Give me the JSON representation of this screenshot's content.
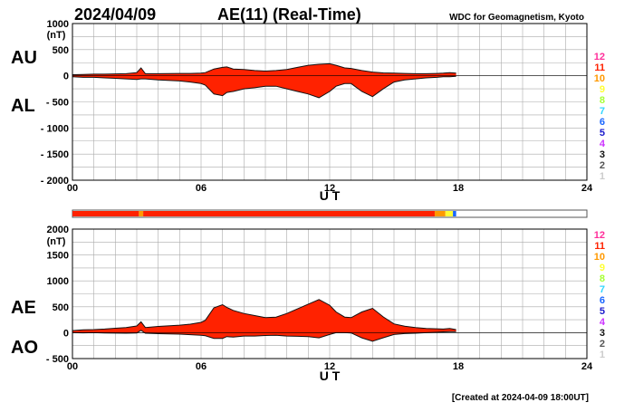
{
  "header": {
    "date": "2024/04/09",
    "title": "AE(11) (Real-Time)",
    "source": "WDC for Geomagnetism, Kyoto"
  },
  "footer": {
    "created": "[Created at 2024-04-09 18:00UT]"
  },
  "station_count_legend": {
    "labels": [
      "12",
      "11",
      "10",
      "9",
      "8",
      "7",
      "6",
      "5",
      "4",
      "3",
      "2",
      "1"
    ],
    "colors": [
      "#ff2e9a",
      "#ff2200",
      "#ff9900",
      "#ffff33",
      "#a6ff33",
      "#33d6ff",
      "#1a66ff",
      "#1a1acc",
      "#cc33ff",
      "#111111",
      "#555555",
      "#cccccc"
    ]
  },
  "colors": {
    "fill_main": "#ff2200",
    "fill_alt": "#ff9900",
    "outline": "#111111",
    "grid": "#aaaaaa"
  },
  "coverage_bar": {
    "segments": [
      {
        "start": 0,
        "end": 3.1,
        "stations": 11
      },
      {
        "start": 3.1,
        "end": 3.3,
        "stations": 10
      },
      {
        "start": 3.3,
        "end": 16.9,
        "stations": 11
      },
      {
        "start": 16.9,
        "end": 17.4,
        "stations": 10
      },
      {
        "start": 17.4,
        "end": 17.75,
        "stations": 9
      },
      {
        "start": 17.75,
        "end": 17.9,
        "stations": 6
      }
    ]
  },
  "chart_data": [
    {
      "type": "area",
      "id": "au_al",
      "title": "AU / AL",
      "upper_label": "AU",
      "lower_label": "AL",
      "ylabel": "(nT)",
      "xlabel": "U T",
      "xlim": [
        0,
        24
      ],
      "ylim": [
        -2000,
        1000
      ],
      "xticks": [
        0,
        6,
        12,
        18,
        24
      ],
      "xtick_labels": [
        "00",
        "06",
        "12",
        "18",
        "24"
      ],
      "yticks": [
        1000,
        500,
        0,
        -500,
        -1000,
        -1500,
        -2000
      ],
      "ytick_labels": [
        "1000",
        "500",
        "0",
        "- 500",
        "- 1000",
        "- 1500",
        "- 2000"
      ],
      "series": [
        {
          "name": "AU",
          "x": [
            0,
            0.5,
            1,
            1.5,
            2,
            2.5,
            3,
            3.2,
            3.4,
            4,
            5,
            5.5,
            6,
            6.2,
            6.6,
            7,
            7.2,
            7.5,
            8,
            8.5,
            9,
            9.5,
            10,
            10.5,
            11,
            11.5,
            12,
            12.3,
            12.7,
            13,
            13.5,
            14,
            14.5,
            15,
            15.5,
            16,
            16.5,
            17,
            17.3,
            17.6,
            17.9
          ],
          "y": [
            20,
            25,
            30,
            30,
            35,
            40,
            60,
            150,
            40,
            40,
            45,
            45,
            50,
            60,
            130,
            160,
            170,
            130,
            120,
            100,
            90,
            100,
            120,
            160,
            200,
            220,
            230,
            200,
            150,
            140,
            100,
            70,
            55,
            50,
            45,
            40,
            40,
            45,
            50,
            60,
            50
          ]
        },
        {
          "name": "AL",
          "x": [
            0,
            0.5,
            1,
            1.5,
            2,
            2.5,
            3,
            3.2,
            3.4,
            4,
            5,
            5.5,
            6,
            6.2,
            6.6,
            7,
            7.2,
            7.5,
            8,
            8.5,
            9,
            9.5,
            10,
            10.5,
            11,
            11.5,
            12,
            12.3,
            12.7,
            13,
            13.5,
            14,
            14.5,
            15,
            15.5,
            16,
            16.5,
            17,
            17.3,
            17.6,
            17.9
          ],
          "y": [
            -20,
            -30,
            -30,
            -40,
            -50,
            -60,
            -70,
            -60,
            -60,
            -80,
            -100,
            -120,
            -150,
            -180,
            -350,
            -380,
            -320,
            -300,
            -250,
            -230,
            -200,
            -200,
            -250,
            -300,
            -350,
            -420,
            -300,
            -200,
            -150,
            -150,
            -300,
            -400,
            -250,
            -120,
            -80,
            -60,
            -40,
            -30,
            -20,
            -20,
            -10
          ]
        }
      ]
    },
    {
      "type": "area",
      "id": "ae_ao",
      "title": "AE / AO",
      "upper_label": "AE",
      "lower_label": "AO",
      "ylabel": "(nT)",
      "xlabel": "U T",
      "xlim": [
        0,
        24
      ],
      "ylim": [
        -500,
        2000
      ],
      "xticks": [
        0,
        6,
        12,
        18,
        24
      ],
      "xtick_labels": [
        "00",
        "06",
        "12",
        "18",
        "24"
      ],
      "yticks": [
        2000,
        1500,
        1000,
        500,
        0,
        -500
      ],
      "ytick_labels": [
        "2000",
        "1500",
        "1000",
        "500",
        "0",
        "- 500"
      ],
      "series": [
        {
          "name": "AE",
          "x": [
            0,
            0.5,
            1,
            1.5,
            2,
            2.5,
            3,
            3.2,
            3.4,
            4,
            5,
            5.5,
            6,
            6.2,
            6.6,
            7,
            7.2,
            7.5,
            8,
            8.5,
            9,
            9.5,
            10,
            10.5,
            11,
            11.5,
            12,
            12.3,
            12.7,
            13,
            13.5,
            14,
            14.5,
            15,
            15.5,
            16,
            16.5,
            17,
            17.3,
            17.6,
            17.9
          ],
          "y": [
            40,
            55,
            60,
            70,
            85,
            100,
            130,
            210,
            100,
            120,
            145,
            165,
            200,
            240,
            480,
            540,
            490,
            430,
            370,
            330,
            290,
            300,
            370,
            460,
            550,
            640,
            530,
            400,
            300,
            290,
            400,
            470,
            305,
            170,
            125,
            100,
            80,
            75,
            70,
            80,
            60
          ]
        },
        {
          "name": "AO",
          "x": [
            0,
            0.5,
            1,
            1.5,
            2,
            2.5,
            3,
            3.2,
            3.4,
            4,
            5,
            5.5,
            6,
            6.2,
            6.6,
            7,
            7.2,
            7.5,
            8,
            8.5,
            9,
            9.5,
            10,
            10.5,
            11,
            11.5,
            12,
            12.3,
            12.7,
            13,
            13.5,
            14,
            14.5,
            15,
            15.5,
            16,
            16.5,
            17,
            17.3,
            17.6,
            17.9
          ],
          "y": [
            0,
            -3,
            0,
            -5,
            -8,
            -10,
            -5,
            45,
            -10,
            -20,
            -28,
            -38,
            -50,
            -60,
            -110,
            -110,
            -75,
            -85,
            -65,
            -65,
            -55,
            -50,
            -65,
            -70,
            -75,
            -100,
            -35,
            0,
            0,
            -5,
            -100,
            -165,
            -98,
            -35,
            -18,
            -10,
            0,
            8,
            15,
            20,
            20
          ]
        }
      ]
    }
  ]
}
